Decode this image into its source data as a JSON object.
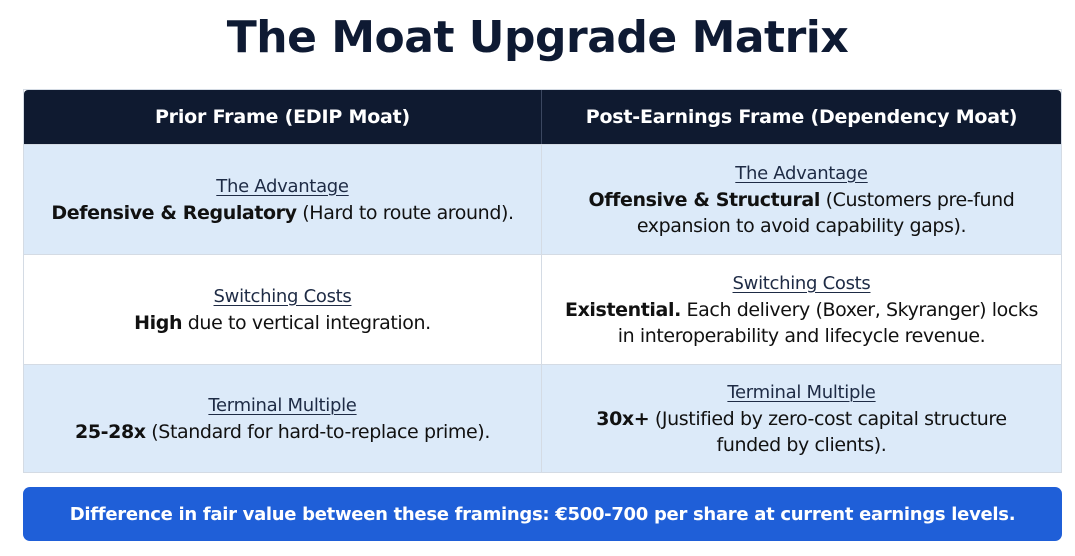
{
  "title": "The Moat Upgrade Matrix",
  "table": {
    "headers": {
      "left": "Prior Frame (EDIP Moat)",
      "right": "Post-Earnings Frame (Dependency Moat)"
    },
    "rows": [
      {
        "left": {
          "label": "The Advantage",
          "bold": "Defensive & Regulatory",
          "line1": " (Hard to route around).",
          "line2": ""
        },
        "right": {
          "label": "The Advantage",
          "bold": "Offensive & Structural",
          "line1": " (Customers pre-fund",
          "line2": "expansion to avoid capability gaps)."
        }
      },
      {
        "left": {
          "label": "Switching Costs",
          "bold": "High",
          "line1": " due to vertical integration.",
          "line2": ""
        },
        "right": {
          "label": "Switching Costs",
          "bold": "Existential.",
          "line1": " Each delivery (Boxer, Skyranger) locks",
          "line2": "in interoperability and lifecycle revenue."
        }
      },
      {
        "left": {
          "label": "Terminal Multiple",
          "bold": "25-28x",
          "line1": " (Standard for hard-to-replace prime).",
          "line2": ""
        },
        "right": {
          "label": "Terminal Multiple",
          "bold": "30x+",
          "line1": " (Justified by zero-cost capital structure",
          "line2": "funded by clients)."
        }
      }
    ]
  },
  "footer": {
    "text": "Difference in fair value between these framings: €500-700 per share at current earnings levels."
  },
  "colors": {
    "header_bg": "#0f1a30",
    "row_blue": "#dceaf9",
    "footer_bg": "#1f5fd8",
    "title": "#0e1a33"
  }
}
